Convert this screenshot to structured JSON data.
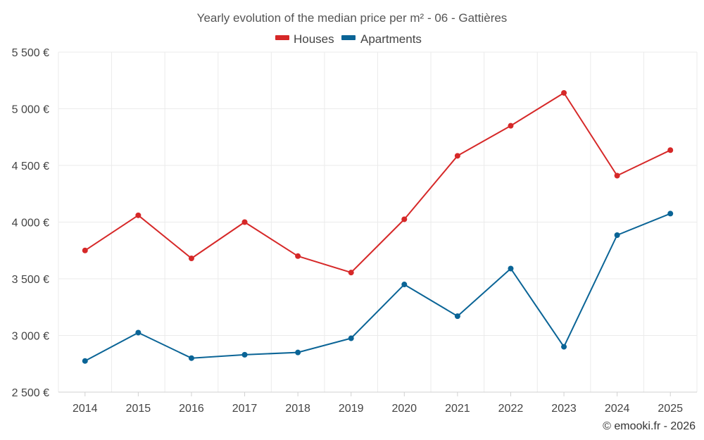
{
  "chart_data": {
    "type": "line",
    "title": "Yearly evolution of the median price per m² - 06 - Gattières",
    "xlabel": "",
    "ylabel": "",
    "categories": [
      "2014",
      "2015",
      "2016",
      "2017",
      "2018",
      "2019",
      "2020",
      "2021",
      "2022",
      "2023",
      "2024",
      "2025"
    ],
    "ylim": [
      2500,
      5500
    ],
    "yticks": [
      2500,
      3000,
      3500,
      4000,
      4500,
      5000,
      5500
    ],
    "ytick_labels": [
      "2 500 €",
      "3 000 €",
      "3 500 €",
      "4 000 €",
      "4 500 €",
      "5 000 €",
      "5 500 €"
    ],
    "grid": true,
    "legend_position": "top-center",
    "series": [
      {
        "name": "Houses",
        "color": "#d62828",
        "values": [
          3750,
          4060,
          3680,
          4000,
          3700,
          3555,
          4025,
          4585,
          4850,
          5140,
          4410,
          4635
        ]
      },
      {
        "name": "Apartments",
        "color": "#0a6496",
        "values": [
          2775,
          3025,
          2800,
          2830,
          2850,
          2975,
          3450,
          3170,
          3590,
          2900,
          3885,
          4075
        ]
      }
    ],
    "credit": "© emooki.fr - 2026"
  }
}
